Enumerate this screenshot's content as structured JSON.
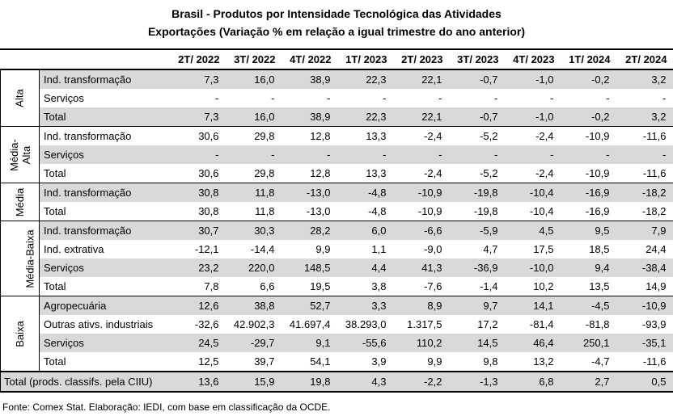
{
  "title_line1": "Brasil - Produtos por Intensidade Tecnológica das Atividades",
  "title_line2": "Exportações (Variação % em relação a igual trimestre do ano anterior)",
  "columns": [
    "2T/ 2022",
    "3T/ 2022",
    "4T/ 2022",
    "1T/ 2023",
    "2T/ 2023",
    "3T/ 2023",
    "4T/ 2023",
    "1T/ 2024",
    "2T/ 2024"
  ],
  "groups": [
    {
      "name": "Alta",
      "rows": [
        {
          "label": "Ind. transformação",
          "values": [
            "7,3",
            "16,0",
            "38,9",
            "22,3",
            "22,1",
            "-0,7",
            "-1,0",
            "-0,2",
            "3,2"
          ],
          "shade": true
        },
        {
          "label": "Serviços",
          "values": [
            "-",
            "-",
            "-",
            "-",
            "-",
            "-",
            "-",
            "-",
            "-"
          ],
          "shade": false
        },
        {
          "label": "Total",
          "values": [
            "7,3",
            "16,0",
            "38,9",
            "22,3",
            "22,1",
            "-0,7",
            "-1,0",
            "-0,2",
            "3,2"
          ],
          "shade": true
        }
      ]
    },
    {
      "name": "Média-Alta",
      "name_lines": [
        "Média-",
        "Alta"
      ],
      "rows": [
        {
          "label": "Ind. transformação",
          "values": [
            "30,6",
            "29,8",
            "12,8",
            "13,3",
            "-2,4",
            "-5,2",
            "-2,4",
            "-10,9",
            "-11,6"
          ],
          "shade": false
        },
        {
          "label": "Serviços",
          "values": [
            "-",
            "-",
            "-",
            "-",
            "-",
            "-",
            "-",
            "-",
            "-"
          ],
          "shade": true
        },
        {
          "label": "Total",
          "values": [
            "30,6",
            "29,8",
            "12,8",
            "13,3",
            "-2,4",
            "-5,2",
            "-2,4",
            "-10,9",
            "-11,6"
          ],
          "shade": false
        }
      ]
    },
    {
      "name": "Média",
      "rows": [
        {
          "label": "Ind. transformação",
          "values": [
            "30,8",
            "11,8",
            "-13,0",
            "-4,8",
            "-10,9",
            "-19,8",
            "-10,4",
            "-16,9",
            "-18,2"
          ],
          "shade": true
        },
        {
          "label": "Total",
          "values": [
            "30,8",
            "11,8",
            "-13,0",
            "-4,8",
            "-10,9",
            "-19,8",
            "-10,4",
            "-16,9",
            "-18,2"
          ],
          "shade": false
        }
      ]
    },
    {
      "name": "Média-Baixa",
      "rows": [
        {
          "label": "Ind. transformação",
          "values": [
            "30,7",
            "30,3",
            "28,2",
            "6,0",
            "-6,6",
            "-5,9",
            "4,5",
            "9,5",
            "7,9"
          ],
          "shade": true
        },
        {
          "label": "Ind. extrativa",
          "values": [
            "-12,1",
            "-14,4",
            "9,9",
            "1,1",
            "-9,0",
            "4,7",
            "17,5",
            "18,5",
            "24,4"
          ],
          "shade": false
        },
        {
          "label": "Serviços",
          "values": [
            "23,2",
            "220,0",
            "148,5",
            "4,4",
            "41,3",
            "-36,9",
            "-10,0",
            "9,4",
            "-38,4"
          ],
          "shade": true
        },
        {
          "label": "Total",
          "values": [
            "7,8",
            "6,6",
            "19,5",
            "3,8",
            "-7,6",
            "-1,4",
            "10,2",
            "13,5",
            "14,9"
          ],
          "shade": false
        }
      ]
    },
    {
      "name": "Baixa",
      "rows": [
        {
          "label": "Agropecuária",
          "values": [
            "12,6",
            "38,8",
            "52,7",
            "3,3",
            "8,9",
            "9,7",
            "14,1",
            "-4,5",
            "-10,9"
          ],
          "shade": true
        },
        {
          "label": "Outras ativs. industriais",
          "values": [
            "-32,6",
            "42.902,3",
            "41.697,4",
            "38.293,0",
            "1.317,5",
            "17,2",
            "-81,4",
            "-81,8",
            "-93,9"
          ],
          "shade": false
        },
        {
          "label": "Serviços",
          "values": [
            "24,5",
            "-29,7",
            "9,1",
            "-55,6",
            "110,2",
            "14,5",
            "46,4",
            "250,1",
            "-35,1"
          ],
          "shade": true
        },
        {
          "label": "Total",
          "values": [
            "12,5",
            "39,7",
            "54,1",
            "3,9",
            "9,9",
            "9,8",
            "13,2",
            "-4,7",
            "-11,6"
          ],
          "shade": false
        }
      ]
    }
  ],
  "grand_total": {
    "label": "Total (prods. classifs. pela CIIU)",
    "values": [
      "13,6",
      "15,9",
      "19,8",
      "4,3",
      "-2,2",
      "-1,3",
      "6,8",
      "2,7",
      "0,5"
    ]
  },
  "source": "Fonte: Comex Stat. Elaboração: IEDI, com base em classificação da OCDE."
}
